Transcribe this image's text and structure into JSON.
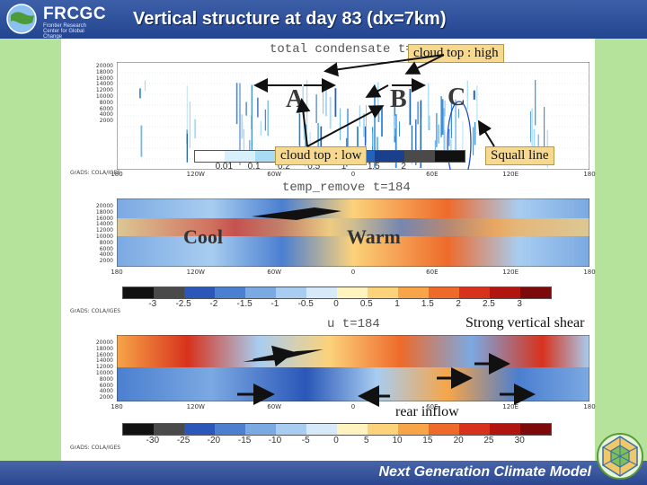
{
  "header": {
    "logo_text": "FRCGC",
    "logo_subtitle": "Frontier Research Center for Global Change",
    "title": "Vertical structure at day 83 (dx=7km)"
  },
  "panels": [
    {
      "title": "total condensate t=184",
      "y_tick_labels": [
        "20000",
        "18000",
        "16000",
        "14000",
        "12000",
        "10000",
        "8000",
        "6000",
        "4000",
        "2000"
      ],
      "x_tick_labels": [
        "180",
        "120W",
        "60W",
        "0",
        "60E",
        "120E",
        "180"
      ],
      "colorbar": {
        "labels": [
          "0.01",
          "0.1",
          "0.2",
          "0.5",
          "1",
          "1.5",
          "2"
        ],
        "colors": [
          "#ffffff",
          "#d8f0fb",
          "#a8dcf4",
          "#6fb8e8",
          "#3d8fd6",
          "#2363b8",
          "#1a3f8c",
          "#4a4a4a",
          "#111111"
        ]
      },
      "grads_label": "GrADS: COLA/IGES"
    },
    {
      "title": "temp_remove t=184",
      "y_tick_labels": [
        "20000",
        "18000",
        "16000",
        "14000",
        "12000",
        "10000",
        "8000",
        "6000",
        "4000",
        "2000"
      ],
      "x_tick_labels": [
        "180",
        "120W",
        "60W",
        "0",
        "60E",
        "120E",
        "180"
      ],
      "colorbar": {
        "labels": [
          "-3",
          "-2.5",
          "-2",
          "-1.5",
          "-1",
          "-0.5",
          "0",
          "0.5",
          "1",
          "1.5",
          "2",
          "2.5",
          "3"
        ],
        "colors": [
          "#111111",
          "#4a4a4a",
          "#2a57b8",
          "#4b7fd0",
          "#7ba9e2",
          "#a8cdf0",
          "#d6e9f8",
          "#fff3c0",
          "#fcd27a",
          "#f7a548",
          "#ee6a2a",
          "#d8321c",
          "#b01510",
          "#7c0a0a"
        ]
      },
      "grads_label": "GrADS: COLA/IGES"
    },
    {
      "title": "u t=184",
      "y_tick_labels": [
        "20000",
        "18000",
        "16000",
        "14000",
        "12000",
        "10000",
        "8000",
        "6000",
        "4000",
        "2000"
      ],
      "x_tick_labels": [
        "180",
        "120W",
        "60W",
        "0",
        "60E",
        "120E",
        "180"
      ],
      "colorbar": {
        "labels": [
          "-30",
          "-25",
          "-20",
          "-15",
          "-10",
          "-5",
          "0",
          "5",
          "10",
          "15",
          "20",
          "25",
          "30"
        ],
        "colors": [
          "#111111",
          "#4a4a4a",
          "#2a57b8",
          "#4b7fd0",
          "#7ba9e2",
          "#a8cdf0",
          "#d6e9f8",
          "#fff3c0",
          "#fcd27a",
          "#f7a548",
          "#ee6a2a",
          "#d8321c",
          "#b01510",
          "#7c0a0a"
        ]
      },
      "grads_label": "GrADS: COLA/IGES"
    }
  ],
  "annotations": {
    "cloud_top_high": "cloud top : high",
    "cloud_top_low": "cloud top : low",
    "squall_line": "Squall line",
    "letter_a": "A",
    "letter_b": "B",
    "letter_c": "C",
    "cool": "Cool",
    "warm": "Warm",
    "strong_vertical_shear": "Strong vertical shear",
    "rear_inflow": "rear inflow"
  },
  "footer": {
    "text": "Next Generation Climate Model"
  },
  "colors": {
    "header_blue": "#2c4b95",
    "side_green": "#b5e39b",
    "callout_tan": "#f6d98e"
  }
}
